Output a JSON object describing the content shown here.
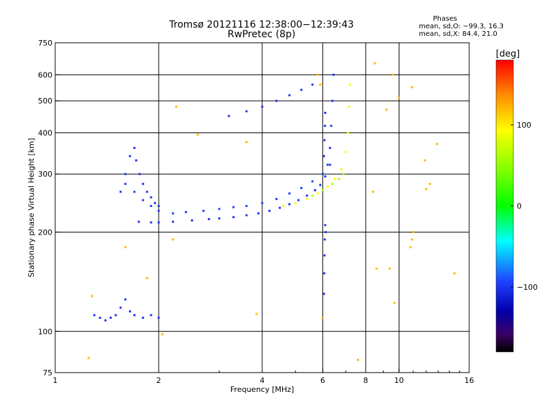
{
  "chart_data": {
    "type": "scatter",
    "title": "Tromsø 20121116 12:38:00−12:39:43",
    "subtitle": "RwPretec (8p)",
    "xlabel": "Frequency [MHz]",
    "ylabel": "Stationary phase Virtual Height [km]",
    "x_scale": "log",
    "y_scale": "log",
    "xlim": [
      1,
      16
    ],
    "ylim": [
      75,
      750
    ],
    "x_ticks": [
      1,
      2,
      4,
      6,
      8,
      10,
      16
    ],
    "x_tick_labels": [
      "1",
      "2",
      "4",
      "6",
      "8",
      "10",
      "16"
    ],
    "x_grid_lines": [
      2,
      4,
      6,
      8,
      10
    ],
    "y_ticks": [
      75,
      100,
      200,
      300,
      400,
      500,
      600,
      750
    ],
    "y_tick_labels": [
      "75",
      "100",
      "200",
      "300",
      "400",
      "500",
      "600",
      "750"
    ],
    "y_grid_lines": [
      100,
      200,
      300,
      400,
      500,
      600
    ],
    "stats": {
      "heading": "Phases",
      "line_o": "mean, sd,O: −99.3, 16.3",
      "line_x": "mean, sd,X:  84.4, 21.0"
    },
    "colorbar": {
      "label": "[deg]",
      "range": [
        -180,
        180
      ],
      "ticks": [
        100,
        0,
        -100
      ],
      "tick_labels": [
        "100",
        "0",
        "−100"
      ]
    },
    "series": [
      {
        "name": "O-mode lower E/F trace",
        "phase": -100,
        "points": [
          [
            1.75,
            215
          ],
          [
            1.9,
            214
          ],
          [
            2.0,
            214
          ],
          [
            2.2,
            215
          ],
          [
            2.5,
            217
          ],
          [
            2.8,
            219
          ],
          [
            3.0,
            220
          ],
          [
            3.3,
            222
          ],
          [
            3.6,
            225
          ],
          [
            3.9,
            228
          ],
          [
            4.2,
            232
          ],
          [
            4.5,
            237
          ],
          [
            4.8,
            243
          ],
          [
            5.1,
            250
          ],
          [
            5.4,
            258
          ],
          [
            5.7,
            268
          ],
          [
            5.9,
            278
          ],
          [
            6.1,
            295
          ],
          [
            6.2,
            320
          ],
          [
            6.3,
            360
          ],
          [
            6.35,
            420
          ],
          [
            6.4,
            500
          ],
          [
            6.45,
            600
          ]
        ]
      },
      {
        "name": "O-mode upper F trace",
        "phase": -95,
        "points": [
          [
            1.6,
            280
          ],
          [
            1.7,
            265
          ],
          [
            1.8,
            250
          ],
          [
            1.9,
            240
          ],
          [
            2.0,
            232
          ],
          [
            2.2,
            228
          ],
          [
            2.4,
            230
          ],
          [
            2.7,
            232
          ],
          [
            3.0,
            235
          ],
          [
            3.3,
            238
          ],
          [
            3.6,
            240
          ],
          [
            4.0,
            245
          ],
          [
            4.4,
            252
          ],
          [
            4.8,
            262
          ],
          [
            5.2,
            272
          ],
          [
            5.6,
            285
          ],
          [
            6.0,
            300
          ],
          [
            6.3,
            320
          ]
        ]
      },
      {
        "name": "O-mode low-frequency cusp",
        "phase": -100,
        "points": [
          [
            1.55,
            265
          ],
          [
            1.6,
            300
          ],
          [
            1.65,
            340
          ],
          [
            1.7,
            360
          ],
          [
            1.72,
            330
          ],
          [
            1.76,
            300
          ],
          [
            1.8,
            280
          ],
          [
            1.85,
            265
          ],
          [
            1.9,
            255
          ],
          [
            1.95,
            245
          ],
          [
            2.0,
            240
          ]
        ]
      },
      {
        "name": "Es sporadic layer",
        "phase": -100,
        "points": [
          [
            1.3,
            112
          ],
          [
            1.35,
            110
          ],
          [
            1.4,
            108
          ],
          [
            1.45,
            110
          ],
          [
            1.5,
            112
          ],
          [
            1.55,
            118
          ],
          [
            1.6,
            125
          ],
          [
            1.65,
            115
          ],
          [
            1.7,
            112
          ],
          [
            1.8,
            110
          ],
          [
            1.9,
            112
          ],
          [
            2.0,
            110
          ]
        ]
      },
      {
        "name": "Spread F upper",
        "phase": -100,
        "points": [
          [
            3.2,
            450
          ],
          [
            3.6,
            465
          ],
          [
            4.0,
            480
          ],
          [
            4.4,
            500
          ],
          [
            4.8,
            520
          ],
          [
            5.2,
            540
          ],
          [
            5.6,
            560
          ]
        ]
      },
      {
        "name": "X-mode trace",
        "phase": 90,
        "points": [
          [
            4.6,
            240
          ],
          [
            5.0,
            245
          ],
          [
            5.4,
            252
          ],
          [
            5.8,
            262
          ],
          [
            6.2,
            275
          ],
          [
            6.5,
            290
          ],
          [
            6.8,
            310
          ],
          [
            7.0,
            350
          ],
          [
            7.1,
            400
          ],
          [
            7.15,
            480
          ],
          [
            7.2,
            560
          ]
        ]
      },
      {
        "name": "X-mode lower band",
        "phase": 60,
        "points": [
          [
            5.6,
            258
          ],
          [
            6.0,
            268
          ],
          [
            6.4,
            280
          ],
          [
            6.7,
            290
          ],
          [
            6.9,
            300
          ]
        ]
      },
      {
        "name": "Scattered echoes",
        "phase": 120,
        "points": [
          [
            8.5,
            650
          ],
          [
            9.6,
            600
          ],
          [
            9.2,
            470
          ],
          [
            10.9,
            550
          ],
          [
            12.9,
            370
          ],
          [
            11.9,
            330
          ],
          [
            8.4,
            265
          ],
          [
            12.3,
            280
          ],
          [
            8.6,
            155
          ],
          [
            9.4,
            155
          ],
          [
            10.8,
            180
          ],
          [
            14.5,
            150
          ],
          [
            9.7,
            122
          ],
          [
            10.0,
            510
          ],
          [
            7.6,
            82
          ],
          [
            11.0,
            200
          ],
          [
            10.9,
            190
          ],
          [
            12.0,
            270
          ],
          [
            1.25,
            83
          ],
          [
            1.28,
            128
          ],
          [
            1.6,
            180
          ],
          [
            1.85,
            145
          ],
          [
            2.05,
            98
          ],
          [
            2.2,
            190
          ],
          [
            2.25,
            480
          ],
          [
            2.6,
            395
          ],
          [
            3.6,
            375
          ],
          [
            3.85,
            113
          ],
          [
            5.8,
            600
          ],
          [
            5.9,
            560
          ],
          [
            6.0,
            110
          ]
        ]
      },
      {
        "name": "Vertical streak near 6 MHz",
        "phase": -100,
        "points": [
          [
            6.05,
            130
          ],
          [
            6.06,
            150
          ],
          [
            6.07,
            170
          ],
          [
            6.08,
            190
          ],
          [
            6.1,
            210
          ],
          [
            6.12,
            200
          ],
          [
            6.05,
            340
          ],
          [
            6.07,
            380
          ],
          [
            6.09,
            420
          ],
          [
            6.1,
            460
          ]
        ]
      }
    ]
  }
}
